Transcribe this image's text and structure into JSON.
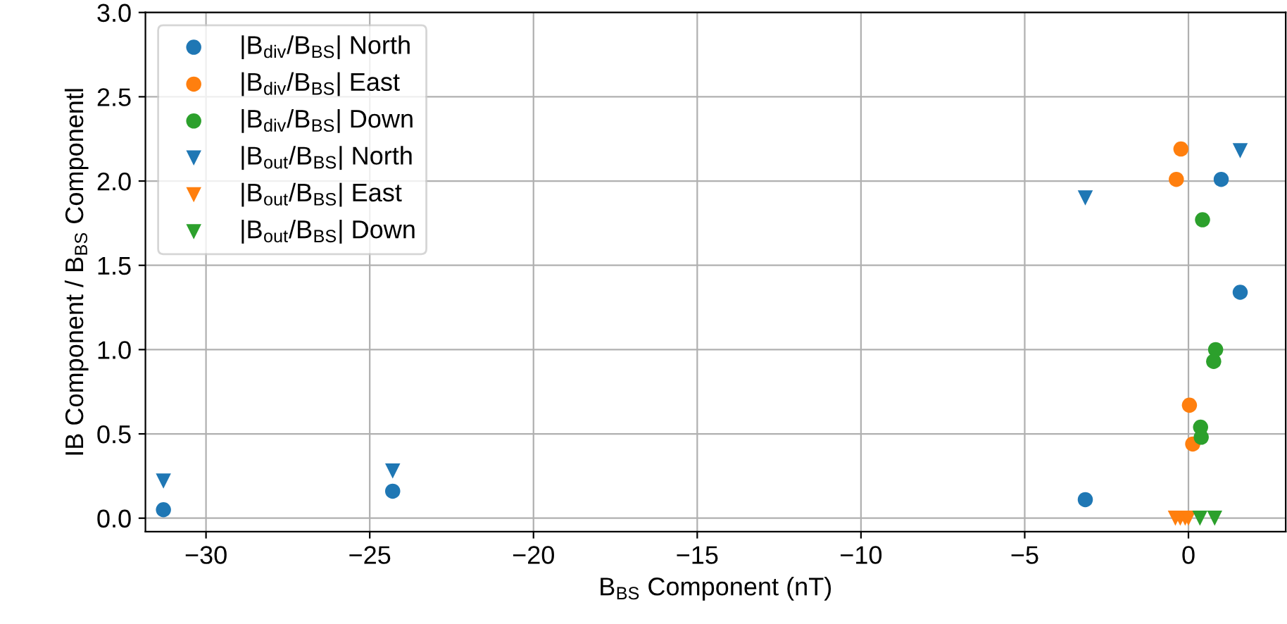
{
  "chart_data": {
    "type": "scatter",
    "xlabel": "B$_{BS}$ Component (nT)",
    "ylabel": "IB Component / B$_{BS}$ Componentl",
    "xlim": [
      -31.85,
      2.97
    ],
    "xticks": [
      {
        "value": -30,
        "label": "−30"
      },
      {
        "value": -25,
        "label": "−25"
      },
      {
        "value": -20,
        "label": "−20"
      },
      {
        "value": -15,
        "label": "−15"
      },
      {
        "value": -10,
        "label": "−10"
      },
      {
        "value": -5,
        "label": "−5"
      },
      0
    ],
    "ylim": [
      -0.08,
      3.0
    ],
    "yticks": [
      {
        "value": 0,
        "label": "0.0"
      },
      0.5,
      {
        "value": 1,
        "label": "1.0"
      },
      1.5,
      {
        "value": 2,
        "label": "2.0"
      },
      2.5,
      {
        "value": 3,
        "label": "3.0"
      }
    ],
    "grid": true,
    "legend": "top left",
    "series": [
      {
        "name": "|B$_{div}$/B$_{BS}$| North",
        "color": "#1f77b4",
        "marker": "circle",
        "x": [
          -31.3,
          -24.3,
          -3.15,
          1.0,
          1.58
        ],
        "values": [
          0.05,
          0.16,
          0.11,
          2.01,
          1.34
        ]
      },
      {
        "name": "|B$_{div}$/B$_{BS}$| East",
        "color": "#ff7f0e",
        "marker": "circle",
        "x": [
          -0.23,
          -0.37,
          0.03,
          0.13
        ],
        "values": [
          2.19,
          2.01,
          0.67,
          0.44
        ]
      },
      {
        "name": "|B$_{div}$/B$_{BS}$| Down",
        "color": "#2ca02c",
        "marker": "circle",
        "x": [
          0.43,
          0.83,
          0.77,
          0.37,
          0.39
        ],
        "values": [
          1.77,
          1.0,
          0.93,
          0.54,
          0.48
        ]
      },
      {
        "name": "|B$_{out}$/B$_{BS}$| North",
        "color": "#1f77b4",
        "marker": "triangle",
        "x": [
          -31.3,
          -24.3,
          -3.15,
          1.58
        ],
        "values": [
          0.22,
          0.28,
          1.9,
          2.18
        ]
      },
      {
        "name": "|B$_{out}$/B$_{BS}$| East",
        "color": "#ff7f0e",
        "marker": "triangle",
        "x": [
          -0.4,
          -0.25,
          -0.1,
          0.0
        ],
        "values": [
          0.0,
          0.0,
          0.0,
          0.0
        ]
      },
      {
        "name": "|B$_{out}$/B$_{BS}$| Down",
        "color": "#2ca02c",
        "marker": "triangle",
        "x": [
          0.35,
          0.8
        ],
        "values": [
          0.0,
          0.0
        ]
      }
    ]
  }
}
